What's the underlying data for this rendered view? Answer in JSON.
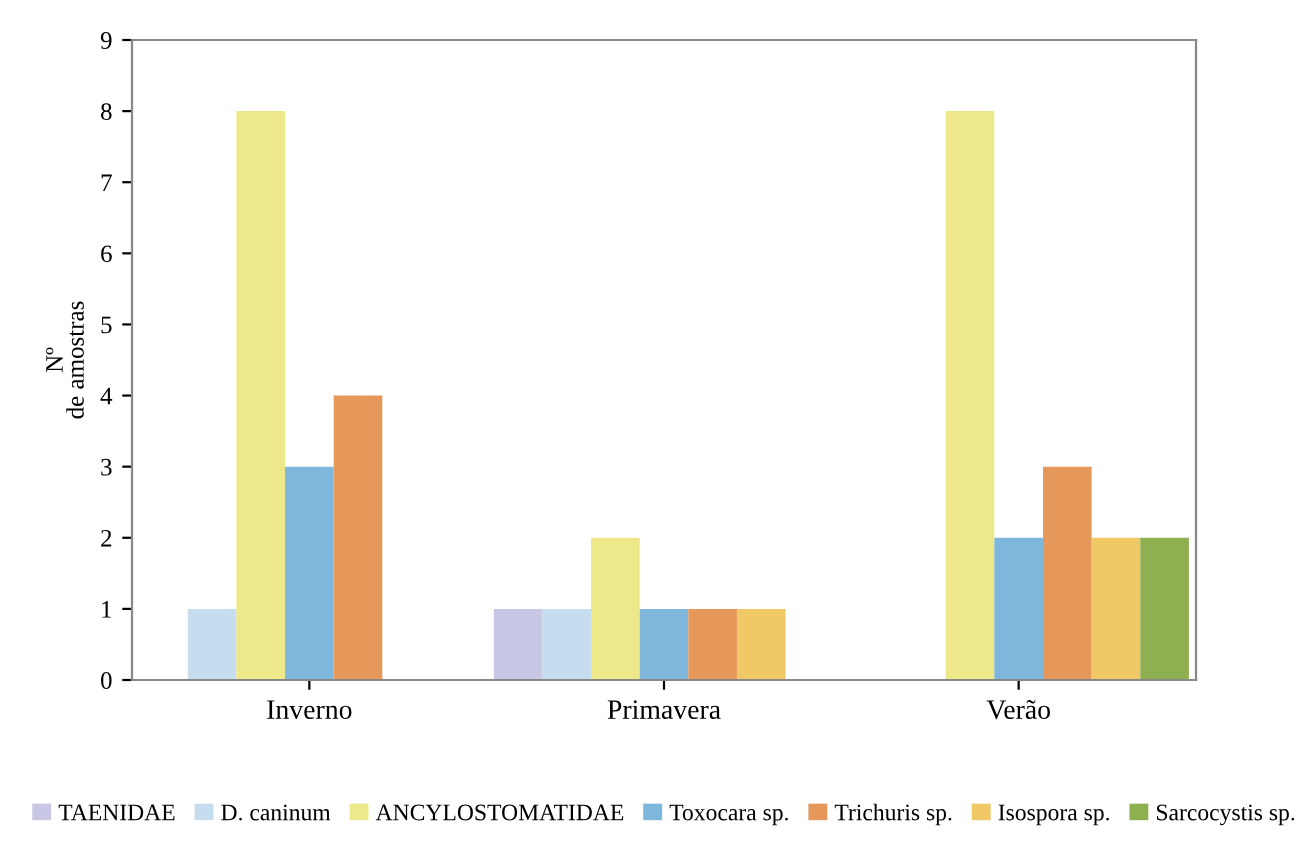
{
  "chart_data": {
    "type": "bar",
    "ylabel": "Nº\nde amostras",
    "categories": [
      "Inverno",
      "Primavera",
      "Verão"
    ],
    "series": [
      {
        "name": "TAENIDAE",
        "color": "#c8c8e6",
        "values": [
          0,
          1,
          0
        ]
      },
      {
        "name": "D. caninum",
        "color": "#c6dcef",
        "values": [
          1,
          1,
          0
        ]
      },
      {
        "name": "ANCYLOSTOMATIDAE",
        "color": "#ede98a",
        "values": [
          8,
          2,
          8
        ]
      },
      {
        "name": "Toxocara sp.",
        "color": "#7fb7dc",
        "values": [
          3,
          1,
          2
        ]
      },
      {
        "name": "Trichuris sp.",
        "color": "#e6975a",
        "values": [
          4,
          1,
          3
        ]
      },
      {
        "name": "Isospora sp.",
        "color": "#f0c866",
        "values": [
          0,
          1,
          2
        ]
      },
      {
        "name": "Sarcocystis sp.",
        "color": "#8fb050",
        "values": [
          0,
          0,
          2
        ]
      }
    ],
    "ylim": [
      0,
      9
    ],
    "yticks": [
      0,
      1,
      2,
      3,
      4,
      5,
      6,
      7,
      8,
      9
    ],
    "grid": false,
    "legend": "bottom"
  }
}
